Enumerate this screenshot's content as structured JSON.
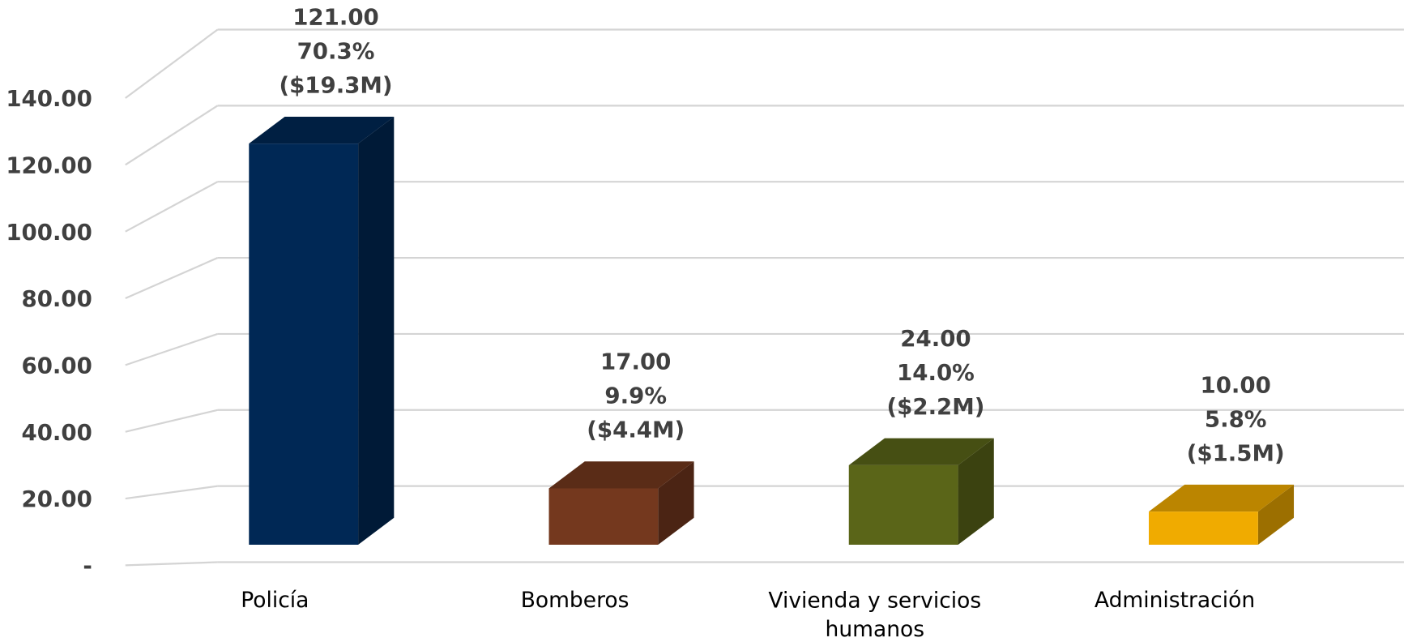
{
  "chart_data": {
    "type": "bar3d",
    "categories": [
      "Policía",
      "Bomberos",
      "Vivienda y servicios humanos",
      "Administración"
    ],
    "values": [
      121,
      17,
      24,
      10
    ],
    "value_labels": [
      "121.00",
      "17.00",
      "24.00",
      "10.00"
    ],
    "percent_labels": [
      "70.3%",
      "9.9%",
      "14.0%",
      "5.8%"
    ],
    "amount_labels": [
      "($19.3M)",
      "($4.4M)",
      "($2.2M)",
      "($1.5M)"
    ],
    "colors": [
      "#002855",
      "#74381e",
      "#5a6518",
      "#f0ab00"
    ],
    "ylim": [
      0,
      140
    ],
    "yticks": [
      {
        "value": 0,
        "label": "-"
      },
      {
        "value": 20,
        "label": "20.00"
      },
      {
        "value": 40,
        "label": "40.00"
      },
      {
        "value": 60,
        "label": "60.00"
      },
      {
        "value": 80,
        "label": "80.00"
      },
      {
        "value": 100,
        "label": "100.00"
      },
      {
        "value": 120,
        "label": "120.00"
      },
      {
        "value": 140,
        "label": "140.00"
      }
    ],
    "grid": true
  }
}
